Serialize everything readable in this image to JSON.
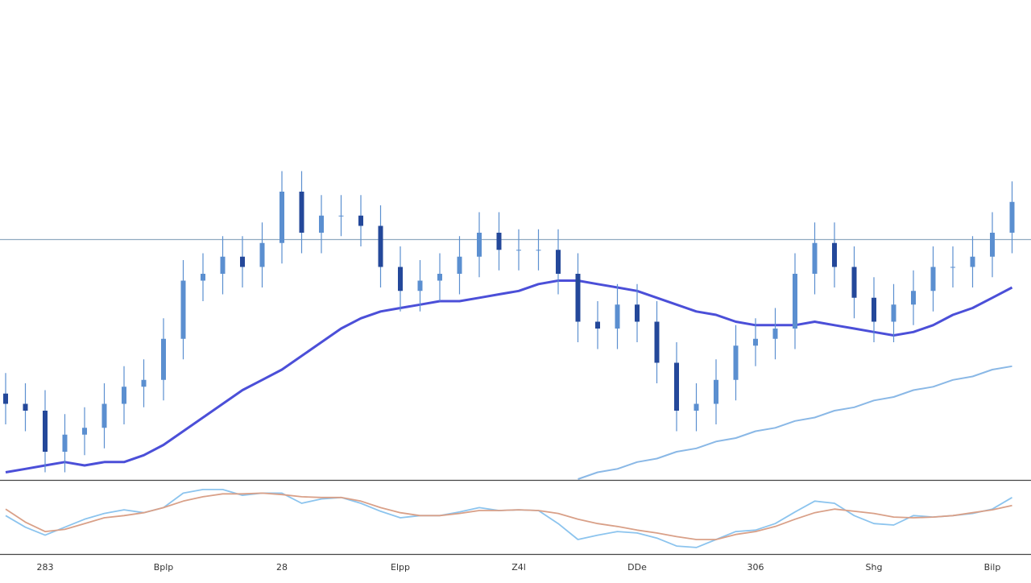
{
  "chart_data": [
    {
      "type": "candlestick",
      "categories": [
        null,
        null,
        "283",
        null,
        null,
        null,
        null,
        null,
        "Bplp",
        null,
        null,
        null,
        null,
        null,
        "28",
        null,
        null,
        null,
        null,
        null,
        "Elpp",
        null,
        null,
        null,
        null,
        null,
        "Z4l",
        null,
        null,
        null,
        null,
        null,
        "DDe",
        null,
        null,
        null,
        null,
        null,
        "306",
        null,
        null,
        null,
        null,
        null,
        "Shg",
        null,
        null,
        null,
        null,
        null,
        "Bilp",
        null
      ],
      "open": [
        25,
        22,
        20,
        8,
        13,
        15,
        22,
        27,
        29,
        41,
        58,
        60,
        65,
        62,
        69,
        84,
        72,
        77,
        77,
        74,
        62,
        55,
        58,
        60,
        65,
        72,
        67,
        67,
        67,
        60,
        46,
        44,
        51,
        46,
        34,
        20,
        22,
        29,
        39,
        41,
        44,
        60,
        69,
        62,
        53,
        46,
        51,
        55,
        62,
        62,
        65,
        72
      ],
      "high": [
        31,
        28,
        26,
        19,
        21,
        28,
        33,
        35,
        47,
        64,
        66,
        71,
        71,
        75,
        90,
        90,
        83,
        83,
        83,
        80,
        68,
        64,
        66,
        71,
        78,
        78,
        73,
        73,
        73,
        66,
        52,
        57,
        57,
        52,
        40,
        28,
        35,
        45,
        47,
        50,
        66,
        75,
        75,
        68,
        59,
        57,
        61,
        68,
        68,
        71,
        78,
        87
      ],
      "low": [
        16,
        14,
        2,
        2,
        7,
        9,
        16,
        21,
        23,
        35,
        52,
        54,
        56,
        56,
        63,
        66,
        66,
        71,
        68,
        56,
        49,
        49,
        52,
        54,
        59,
        61,
        61,
        61,
        54,
        40,
        38,
        38,
        40,
        28,
        14,
        14,
        16,
        23,
        33,
        35,
        38,
        54,
        56,
        47,
        40,
        40,
        45,
        49,
        56,
        56,
        59,
        66
      ],
      "close": [
        22,
        20,
        8,
        13,
        15,
        22,
        27,
        29,
        41,
        58,
        60,
        65,
        62,
        69,
        84,
        72,
        77,
        77,
        74,
        62,
        55,
        58,
        60,
        65,
        72,
        67,
        67,
        67,
        60,
        46,
        44,
        51,
        46,
        34,
        20,
        22,
        29,
        39,
        41,
        44,
        60,
        69,
        62,
        53,
        46,
        51,
        55,
        62,
        62,
        65,
        72,
        81
      ],
      "up_color": "#5b8fd0",
      "down_color": "#24489a",
      "wick_color": "#5b8fd0",
      "overlays": [
        {
          "color": "#4b4fd8",
          "values": [
            2,
            3,
            4,
            5,
            4,
            5,
            5,
            7,
            10,
            14,
            18,
            22,
            26,
            29,
            32,
            36,
            40,
            44,
            47,
            49,
            50,
            51,
            52,
            52,
            53,
            54,
            55,
            57,
            58,
            58,
            57,
            56,
            55,
            53,
            51,
            49,
            48,
            46,
            45,
            45,
            45,
            46,
            45,
            44,
            43,
            42,
            43,
            45,
            48,
            50,
            53,
            56
          ]
        },
        {
          "color": "#8ab8e6",
          "values": [
            null,
            null,
            null,
            null,
            null,
            null,
            null,
            null,
            null,
            null,
            null,
            null,
            null,
            null,
            null,
            null,
            null,
            null,
            null,
            null,
            null,
            null,
            null,
            null,
            null,
            null,
            null,
            null,
            null,
            0,
            2,
            3,
            5,
            6,
            8,
            9,
            11,
            12,
            14,
            15,
            17,
            18,
            20,
            21,
            23,
            24,
            26,
            27,
            29,
            30,
            32,
            33
          ]
        }
      ],
      "reference_line": 70,
      "reference_color": "#8fa9c0",
      "ylim": [
        0,
        100
      ]
    },
    {
      "type": "line",
      "series": [
        {
          "color": "#8cc4ee",
          "values": [
            53,
            37,
            26,
            37,
            48,
            56,
            61,
            57,
            64,
            84,
            89,
            89,
            81,
            84,
            84,
            70,
            76,
            78,
            70,
            59,
            50,
            53,
            53,
            58,
            64,
            60,
            61,
            60,
            42,
            20,
            26,
            31,
            29,
            22,
            11,
            9,
            20,
            31,
            33,
            42,
            58,
            73,
            70,
            53,
            42,
            40,
            53,
            51,
            53,
            56,
            62,
            78
          ]
        },
        {
          "color": "#d9a088",
          "values": [
            62,
            44,
            31,
            34,
            42,
            50,
            53,
            57,
            64,
            73,
            79,
            83,
            83,
            84,
            82,
            79,
            78,
            78,
            73,
            64,
            57,
            53,
            53,
            56,
            60,
            60,
            61,
            60,
            56,
            48,
            42,
            38,
            33,
            29,
            24,
            20,
            20,
            27,
            31,
            38,
            48,
            57,
            62,
            59,
            56,
            51,
            50,
            51,
            53,
            57,
            61,
            67
          ]
        }
      ],
      "ylim": [
        0,
        100
      ]
    }
  ]
}
